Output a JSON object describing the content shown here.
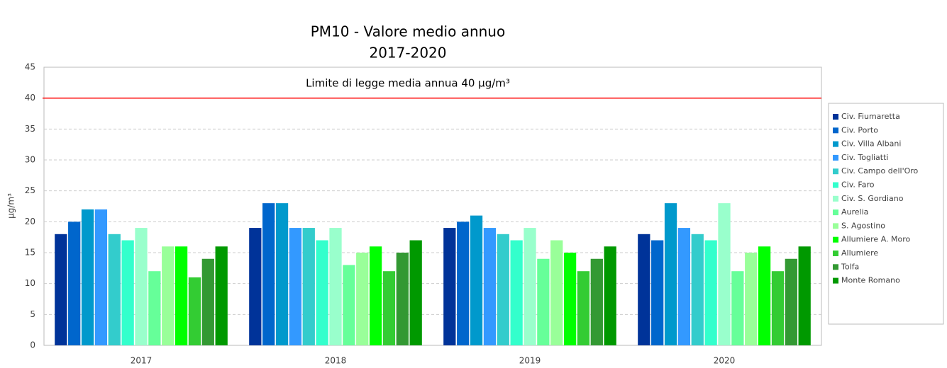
{
  "chart_data": {
    "type": "bar",
    "title": "PM10 - Valore medio annuo",
    "subtitle": "2017-2020",
    "y_label": "µg/m³",
    "annotation": "Limite di legge media annua 40 µg/m³",
    "limit_line": {
      "value": 40,
      "color": "#ff0000"
    },
    "categories": [
      "2017",
      "2018",
      "2019",
      "2020"
    ],
    "series": [
      {
        "name": "Civ. Fiumaretta",
        "color": "#003399",
        "values": [
          18,
          19,
          19,
          18
        ]
      },
      {
        "name": "Civ. Porto",
        "color": "#0066cc",
        "values": [
          20,
          23,
          20,
          17
        ]
      },
      {
        "name": "Civ. Villa Albani",
        "color": "#0099cc",
        "values": [
          22,
          23,
          21,
          23
        ]
      },
      {
        "name": "Civ. Togliatti",
        "color": "#3399ff",
        "values": [
          22,
          19,
          19,
          19
        ]
      },
      {
        "name": "Civ. Campo dell'Oro",
        "color": "#33cccc",
        "values": [
          18,
          19,
          18,
          18
        ]
      },
      {
        "name": "Civ. Faro",
        "color": "#33ffcc",
        "values": [
          17,
          17,
          17,
          17
        ]
      },
      {
        "name": "Civ. S. Gordiano",
        "color": "#99ffcc",
        "values": [
          19,
          19,
          19,
          23
        ]
      },
      {
        "name": "Aurelia",
        "color": "#66ff99",
        "values": [
          12,
          13,
          14,
          12
        ]
      },
      {
        "name": "S. Agostino",
        "color": "#99ff99",
        "values": [
          16,
          15,
          17,
          15
        ]
      },
      {
        "name": "Allumiere A. Moro",
        "color": "#00ff00",
        "values": [
          16,
          16,
          15,
          16
        ]
      },
      {
        "name": "Allumiere",
        "color": "#33cc33",
        "values": [
          11,
          12,
          12,
          12
        ]
      },
      {
        "name": "Tolfa",
        "color": "#339933",
        "values": [
          14,
          15,
          14,
          14
        ]
      },
      {
        "name": "Monte Romano",
        "color": "#009900",
        "values": [
          16,
          17,
          16,
          16
        ]
      }
    ],
    "ylim": [
      0,
      45
    ],
    "yticks": [
      0,
      5,
      10,
      15,
      20,
      25,
      30,
      35,
      40,
      45
    ],
    "grid": true,
    "legend": "right"
  }
}
